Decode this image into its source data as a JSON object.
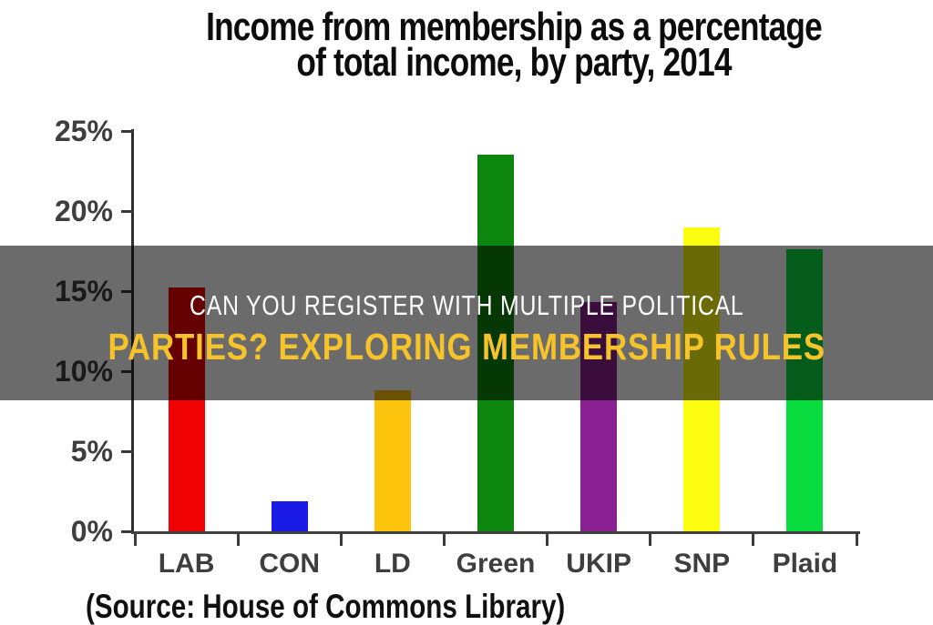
{
  "page": {
    "background": "#ffffff"
  },
  "overlay_banner": {
    "line1": "CAN YOU REGISTER WITH MULTIPLE POLITICAL",
    "line2": "PARTIES? EXPLORING MEMBERSHIP RULES",
    "line1_color": "#ffffff",
    "line2_color": "#f6c32b",
    "background_rgba": "rgba(0,0,0,0.58)"
  },
  "chart_data": {
    "type": "bar",
    "title": "Income from membership as a percentage of total income, by party, 2014",
    "title_line1": "Income from membership as a percentage",
    "title_line2": "of total income, by party, 2014",
    "categories": [
      "LAB",
      "CON",
      "LD",
      "Green",
      "UKIP",
      "SNP",
      "Plaid"
    ],
    "values": [
      15.2,
      1.9,
      8.8,
      23.5,
      14.3,
      19.0,
      17.6
    ],
    "bar_colors": [
      "#f00202",
      "#1b1be8",
      "#fdc40e",
      "#0d860d",
      "#8a2092",
      "#fdfd12",
      "#09dc3e"
    ],
    "ylabel": "",
    "xlabel": "",
    "ytick_labels": [
      "0%",
      "5%",
      "10%",
      "15%",
      "20%",
      "25%"
    ],
    "ytick_values": [
      0,
      5,
      10,
      15,
      20,
      25
    ],
    "ylim": [
      0,
      25
    ],
    "grid": false,
    "legend": null,
    "source_note": "(Source: House of Commons Library)"
  }
}
